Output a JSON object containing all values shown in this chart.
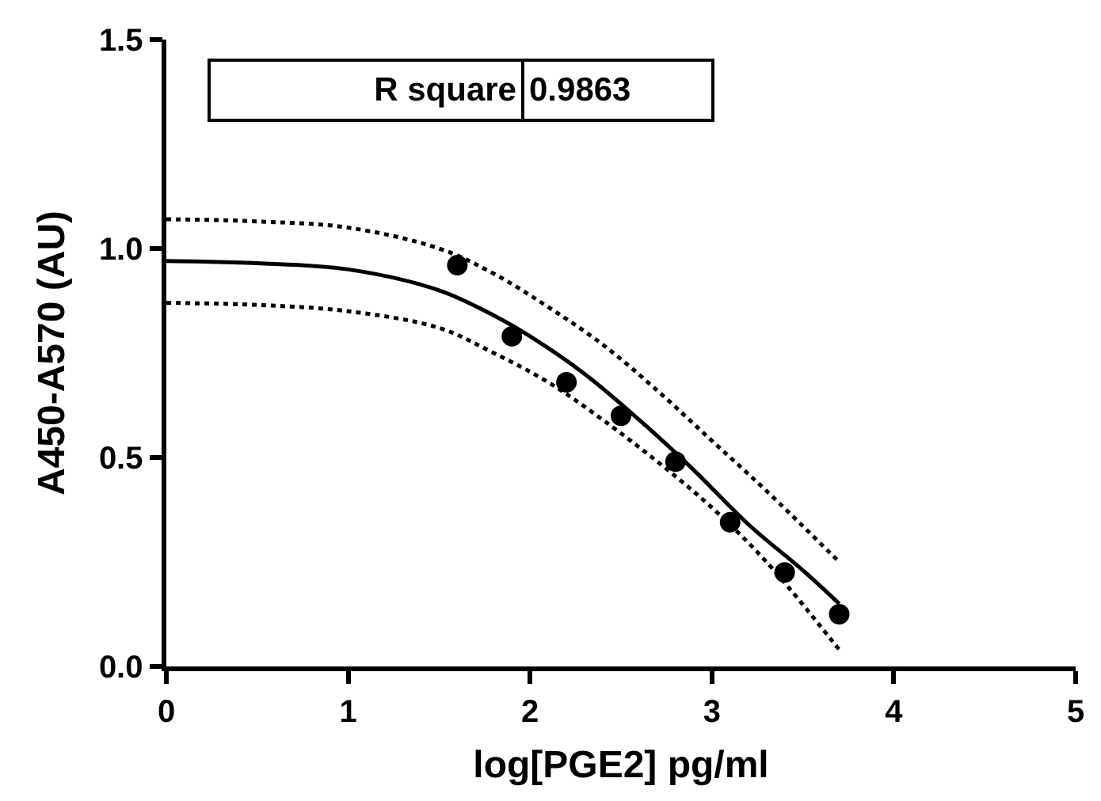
{
  "chart_data": {
    "type": "scatter",
    "xlabel": "log[PGE2] pg/ml",
    "ylabel": "A450-A570 (AU)",
    "annotations": [
      "R square",
      "0.9863"
    ],
    "xlim": [
      0,
      5
    ],
    "xticks": [
      0,
      1,
      2,
      3,
      4,
      5
    ],
    "ylim": [
      0,
      1.5
    ],
    "yticks": [
      {
        "value": 0,
        "label": "0.0"
      },
      0.5,
      {
        "value": 1,
        "label": "1.0"
      },
      1.5
    ],
    "series": [
      {
        "marker": "circle",
        "color": "#000000",
        "x": [
          1.6,
          1.9,
          2.2,
          2.5,
          2.8,
          3.1,
          3.4,
          3.7
        ],
        "values": [
          0.96,
          0.79,
          0.68,
          0.6,
          0.49,
          0.345,
          0.225,
          0.125
        ]
      },
      {
        "type": "line",
        "marker": "none",
        "line_style": "solid",
        "color": "#000000",
        "x": [
          0,
          0.5,
          1.0,
          1.5,
          1.8,
          2.0,
          2.3,
          2.6,
          2.9,
          3.2,
          3.5,
          3.7
        ],
        "values": [
          0.97,
          0.965,
          0.95,
          0.9,
          0.84,
          0.79,
          0.7,
          0.59,
          0.47,
          0.34,
          0.23,
          0.15
        ]
      },
      {
        "type": "line",
        "marker": "none",
        "line_style": "dotted",
        "color": "#000000",
        "x": [
          0,
          0.5,
          1.0,
          1.5,
          1.8,
          2.1,
          2.4,
          2.7,
          3.0,
          3.3,
          3.7
        ],
        "values": [
          1.07,
          1.065,
          1.05,
          1.0,
          0.94,
          0.86,
          0.77,
          0.66,
          0.54,
          0.42,
          0.25
        ]
      },
      {
        "type": "line",
        "marker": "none",
        "line_style": "dotted",
        "color": "#000000",
        "x": [
          0,
          0.5,
          1.0,
          1.5,
          1.8,
          2.1,
          2.4,
          2.7,
          3.0,
          3.3,
          3.7
        ],
        "values": [
          0.87,
          0.865,
          0.85,
          0.81,
          0.75,
          0.68,
          0.59,
          0.49,
          0.38,
          0.25,
          0.04
        ]
      }
    ]
  }
}
